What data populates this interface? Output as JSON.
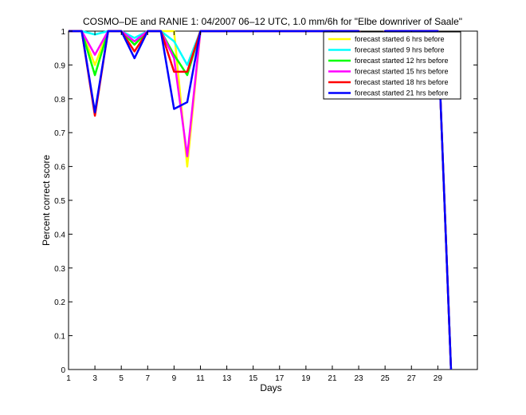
{
  "chart_data": {
    "type": "line",
    "title": "COSMO–DE and RANIE 1: 04/2007 06–12 UTC, 1.0 mm/6h for \"Elbe downriver of Saale\"",
    "xlabel": "Days",
    "ylabel": "Percent correct score",
    "xlim": [
      1,
      32
    ],
    "ylim": [
      0,
      1
    ],
    "xticks": [
      1,
      3,
      5,
      7,
      9,
      11,
      13,
      15,
      17,
      19,
      21,
      23,
      25,
      27,
      29
    ],
    "yticks": [
      0,
      0.1,
      0.2,
      0.3,
      0.4,
      0.5,
      0.6,
      0.7,
      0.8,
      0.9,
      1
    ],
    "ytick_labels": [
      "0",
      "0.1",
      "0.2",
      "0.3",
      "0.4",
      "0.5",
      "0.6",
      "0.7",
      "0.8",
      "0.9",
      "1"
    ],
    "grid": false,
    "legend_position": "top-right",
    "x": [
      1,
      2,
      3,
      4,
      5,
      6,
      7,
      8,
      9,
      10,
      11,
      12,
      13,
      14,
      15,
      16,
      17,
      18,
      19,
      20,
      21,
      22,
      23,
      24,
      25,
      26,
      27,
      28,
      29,
      30
    ],
    "series": [
      {
        "name": "forecast started 6 hrs before",
        "color": "#ffff00",
        "values": [
          1,
          1,
          0.9,
          1,
          1,
          0.96,
          1,
          1,
          1,
          0.6,
          1,
          1,
          1,
          1,
          1,
          1,
          1,
          1,
          1,
          1,
          1,
          1,
          1,
          0.86,
          1,
          1,
          1,
          1,
          1,
          0
        ]
      },
      {
        "name": "forecast started 9 hrs before",
        "color": "#00ffff",
        "values": [
          1,
          1,
          0.99,
          1,
          1,
          0.98,
          1,
          1,
          0.97,
          0.9,
          1,
          1,
          1,
          1,
          1,
          1,
          1,
          1,
          1,
          1,
          1,
          1,
          1,
          0.97,
          1,
          1,
          1,
          1,
          1,
          0
        ]
      },
      {
        "name": "forecast started 12 hrs before",
        "color": "#00ff00",
        "values": [
          1,
          1,
          0.87,
          1,
          1,
          0.96,
          1,
          1,
          0.93,
          0.87,
          1,
          1,
          1,
          1,
          1,
          1,
          1,
          1,
          1,
          1,
          1,
          1,
          1,
          0.96,
          1,
          1,
          1,
          1,
          1,
          0
        ]
      },
      {
        "name": "forecast started 15 hrs before",
        "color": "#ff00ff",
        "values": [
          1,
          1,
          0.93,
          1,
          1,
          0.97,
          1,
          1,
          0.92,
          0.63,
          1,
          1,
          1,
          1,
          1,
          1,
          1,
          1,
          1,
          1,
          1,
          1,
          1,
          0.96,
          1,
          1,
          1,
          1,
          1,
          0
        ]
      },
      {
        "name": "forecast started 18 hrs before",
        "color": "#ff0000",
        "values": [
          1,
          1,
          0.75,
          1,
          1,
          0.94,
          1,
          1,
          0.88,
          0.88,
          1,
          1,
          1,
          1,
          1,
          1,
          1,
          1,
          1,
          1,
          1,
          1,
          1,
          0.97,
          1,
          1,
          1,
          1,
          1,
          0
        ]
      },
      {
        "name": "forecast started 21 hrs before",
        "color": "#0000ff",
        "values": [
          1,
          1,
          0.76,
          1,
          1,
          0.92,
          1,
          1,
          0.77,
          0.79,
          1,
          1,
          1,
          1,
          1,
          1,
          1,
          1,
          1,
          1,
          1,
          1,
          1,
          0.91,
          1,
          1,
          1,
          1,
          1,
          0
        ]
      }
    ]
  }
}
